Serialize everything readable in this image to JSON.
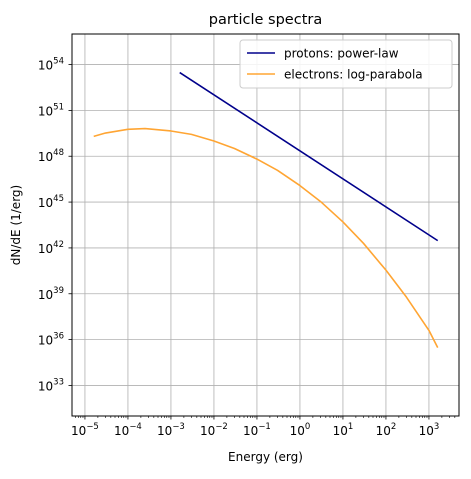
{
  "chart_data": {
    "type": "line",
    "title": "particle spectra",
    "xlabel": "Energy (erg)",
    "ylabel": "dN/dE (1/erg)",
    "xscale": "log",
    "yscale": "log",
    "xlim": [
      5e-06,
      5000
    ],
    "ylim": [
      1e+31,
      1e+56
    ],
    "grid": true,
    "legend_position": "top-right",
    "x_ticks": [
      {
        "exp": -5,
        "label": "10",
        "sup": "−5"
      },
      {
        "exp": -4,
        "label": "10",
        "sup": "−4"
      },
      {
        "exp": -3,
        "label": "10",
        "sup": "−3"
      },
      {
        "exp": -2,
        "label": "10",
        "sup": "−2"
      },
      {
        "exp": -1,
        "label": "10",
        "sup": "−1"
      },
      {
        "exp": 0,
        "label": "10",
        "sup": "0"
      },
      {
        "exp": 1,
        "label": "10",
        "sup": "1"
      },
      {
        "exp": 2,
        "label": "10",
        "sup": "2"
      },
      {
        "exp": 3,
        "label": "10",
        "sup": "3"
      }
    ],
    "y_ticks": [
      {
        "exp": 33,
        "label": "10",
        "sup": "33"
      },
      {
        "exp": 36,
        "label": "10",
        "sup": "36"
      },
      {
        "exp": 39,
        "label": "10",
        "sup": "39"
      },
      {
        "exp": 42,
        "label": "10",
        "sup": "42"
      },
      {
        "exp": 45,
        "label": "10",
        "sup": "45"
      },
      {
        "exp": 48,
        "label": "10",
        "sup": "48"
      },
      {
        "exp": 51,
        "label": "10",
        "sup": "51"
      },
      {
        "exp": 54,
        "label": "10",
        "sup": "54"
      }
    ],
    "series": [
      {
        "name": "protons: power-law",
        "color": "#00008b",
        "x": [
          0.0016,
          1600
        ],
        "y": [
          3e+53,
          3e+42
        ]
      },
      {
        "name": "electrons: log-parabola",
        "color": "#ffa533",
        "x": [
          1.6e-05,
          3e-05,
          0.0001,
          0.00025,
          0.001,
          0.003,
          0.01,
          0.03,
          0.1,
          0.3,
          1,
          3,
          10,
          30,
          100,
          300,
          1000,
          1600
        ],
        "y": [
          2e+49,
          3.3e+49,
          5.8e+49,
          6.5e+49,
          4.5e+49,
          2.7e+49,
          1e+49,
          3.2e+48,
          6.5e+47,
          1.2e+47,
          1.2e+46,
          1.1e+45,
          5e+43,
          2e+42,
          3.5e+40,
          6e+38,
          4e+36,
          3e+35
        ]
      }
    ]
  }
}
